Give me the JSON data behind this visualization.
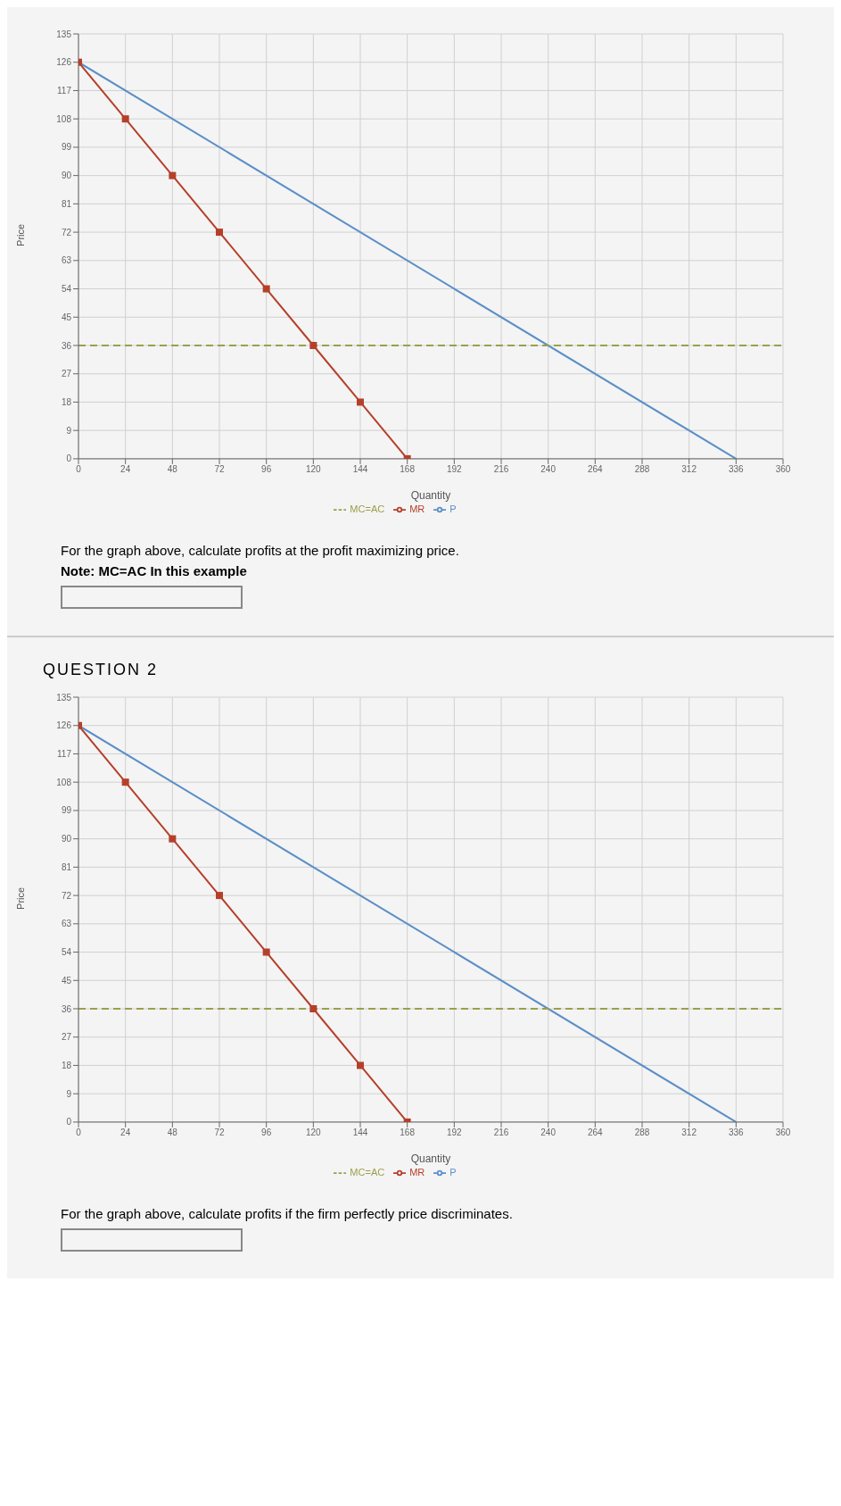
{
  "chart_data": [
    {
      "type": "line",
      "xlabel": "Quantity",
      "ylabel": "Price",
      "xlim": [
        0,
        360
      ],
      "xticks": [
        0,
        24,
        48,
        72,
        96,
        120,
        144,
        168,
        192,
        216,
        240,
        264,
        288,
        312,
        336,
        360
      ],
      "ylim": [
        0,
        135
      ],
      "yticks": [
        0,
        9,
        18,
        27,
        36,
        45,
        54,
        63,
        72,
        81,
        90,
        99,
        108,
        117,
        126,
        135
      ],
      "grid": true,
      "legend": "bottom",
      "series": [
        {
          "name": "P",
          "color": "#5b8fc7",
          "x": [
            0,
            336
          ],
          "values": [
            126,
            0
          ],
          "marker": "none",
          "line_style": "solid"
        },
        {
          "name": "MR",
          "color": "#b5402a",
          "x": [
            0,
            24,
            48,
            72,
            96,
            120,
            144,
            168
          ],
          "values": [
            126,
            108,
            90,
            72,
            54,
            36,
            18,
            0
          ],
          "marker": "square",
          "line_style": "solid"
        },
        {
          "name": "MC=AC",
          "color": "#9aa04a",
          "x": [
            0,
            360
          ],
          "values": [
            36,
            36
          ],
          "marker": "none",
          "line_style": "dashed"
        }
      ],
      "annotations": [
        "For the graph above, calculate profits at the profit maximizing price.",
        "Note: MC=AC In this example"
      ]
    },
    {
      "type": "line",
      "title": "QUESTION 2",
      "xlabel": "Quantity",
      "ylabel": "Price",
      "xlim": [
        0,
        360
      ],
      "xticks": [
        0,
        24,
        48,
        72,
        96,
        120,
        144,
        168,
        192,
        216,
        240,
        264,
        288,
        312,
        336,
        360
      ],
      "ylim": [
        0,
        135
      ],
      "yticks": [
        0,
        9,
        18,
        27,
        36,
        45,
        54,
        63,
        72,
        81,
        90,
        99,
        108,
        117,
        126,
        135
      ],
      "grid": true,
      "legend": "bottom",
      "series": [
        {
          "name": "P",
          "color": "#5b8fc7",
          "x": [
            0,
            336
          ],
          "values": [
            126,
            0
          ],
          "marker": "none",
          "line_style": "solid"
        },
        {
          "name": "MR",
          "color": "#b5402a",
          "x": [
            0,
            24,
            48,
            72,
            96,
            120,
            144,
            168
          ],
          "values": [
            126,
            108,
            90,
            72,
            54,
            36,
            18,
            0
          ],
          "marker": "square",
          "line_style": "solid"
        },
        {
          "name": "MC=AC",
          "color": "#9aa04a",
          "x": [
            0,
            360
          ],
          "values": [
            36,
            36
          ],
          "marker": "none",
          "line_style": "dashed"
        }
      ],
      "annotations": [
        "For the graph above, calculate profits if the firm perfectly price discriminates."
      ]
    }
  ]
}
